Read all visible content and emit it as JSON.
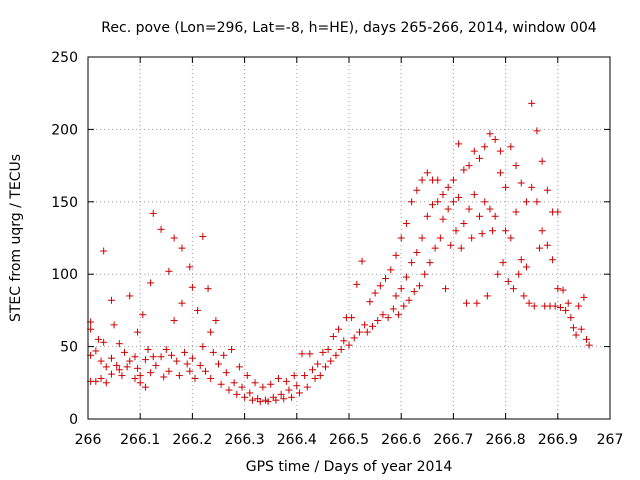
{
  "chart_data": {
    "type": "scatter",
    "title": "Rec. pove (Lon=296, Lat=-8, h=HE), days 265-266, 2014, window 004",
    "xlabel": "GPS time / Days of year 2014",
    "ylabel": "STEC from uqrg / TECUs",
    "xlim": [
      266,
      267
    ],
    "ylim": [
      0,
      250
    ],
    "xticks": [
      "266",
      "266.1",
      "266.2",
      "266.3",
      "266.4",
      "266.5",
      "266.6",
      "266.7",
      "266.8",
      "266.9",
      "267"
    ],
    "yticks": [
      "0",
      "50",
      "100",
      "150",
      "200",
      "250"
    ],
    "grid": true,
    "marker": "+",
    "marker_color": "#cc0000",
    "series": [
      {
        "values": [
          [
            266.005,
            67
          ],
          [
            266.005,
            62
          ],
          [
            266.005,
            44
          ],
          [
            266.005,
            26
          ],
          [
            266.015,
            47
          ],
          [
            266.015,
            26
          ],
          [
            266.02,
            55
          ],
          [
            266.025,
            40
          ],
          [
            266.025,
            28
          ],
          [
            266.03,
            116
          ],
          [
            266.03,
            53
          ],
          [
            266.035,
            36
          ],
          [
            266.035,
            25
          ],
          [
            266.045,
            82
          ],
          [
            266.045,
            42
          ],
          [
            266.045,
            31
          ],
          [
            266.05,
            65
          ],
          [
            266.055,
            37
          ],
          [
            266.06,
            52
          ],
          [
            266.06,
            34
          ],
          [
            266.065,
            30
          ],
          [
            266.07,
            46
          ],
          [
            266.075,
            36
          ],
          [
            266.08,
            85
          ],
          [
            266.08,
            40
          ],
          [
            266.09,
            43
          ],
          [
            266.09,
            28
          ],
          [
            266.095,
            60
          ],
          [
            266.095,
            35
          ],
          [
            266.1,
            30
          ],
          [
            266.1,
            25
          ],
          [
            266.105,
            72
          ],
          [
            266.11,
            41
          ],
          [
            266.11,
            22
          ],
          [
            266.115,
            48
          ],
          [
            266.12,
            94
          ],
          [
            266.12,
            32
          ],
          [
            266.125,
            142
          ],
          [
            266.125,
            43
          ],
          [
            266.13,
            37
          ],
          [
            266.14,
            131
          ],
          [
            266.14,
            43
          ],
          [
            266.145,
            29
          ],
          [
            266.15,
            48
          ],
          [
            266.155,
            102
          ],
          [
            266.155,
            33
          ],
          [
            266.16,
            44
          ],
          [
            266.165,
            125
          ],
          [
            266.165,
            68
          ],
          [
            266.17,
            40
          ],
          [
            266.175,
            30
          ],
          [
            266.18,
            118
          ],
          [
            266.18,
            80
          ],
          [
            266.185,
            46
          ],
          [
            266.19,
            38
          ],
          [
            266.195,
            105
          ],
          [
            266.195,
            33
          ],
          [
            266.2,
            91
          ],
          [
            266.2,
            42
          ],
          [
            266.205,
            28
          ],
          [
            266.21,
            75
          ],
          [
            266.215,
            37
          ],
          [
            266.22,
            126
          ],
          [
            266.22,
            50
          ],
          [
            266.225,
            33
          ],
          [
            266.23,
            90
          ],
          [
            266.235,
            60
          ],
          [
            266.235,
            28
          ],
          [
            266.24,
            46
          ],
          [
            266.245,
            68
          ],
          [
            266.25,
            38
          ],
          [
            266.255,
            24
          ],
          [
            266.26,
            44
          ],
          [
            266.265,
            32
          ],
          [
            266.27,
            20
          ],
          [
            266.275,
            48
          ],
          [
            266.28,
            25
          ],
          [
            266.285,
            17
          ],
          [
            266.29,
            36
          ],
          [
            266.295,
            22
          ],
          [
            266.3,
            15
          ],
          [
            266.305,
            30
          ],
          [
            266.31,
            18
          ],
          [
            266.315,
            13
          ],
          [
            266.32,
            25
          ],
          [
            266.325,
            14
          ],
          [
            266.33,
            12
          ],
          [
            266.335,
            22
          ],
          [
            266.34,
            13
          ],
          [
            266.345,
            12
          ],
          [
            266.35,
            24
          ],
          [
            266.355,
            15
          ],
          [
            266.36,
            13
          ],
          [
            266.365,
            28
          ],
          [
            266.37,
            17
          ],
          [
            266.375,
            14
          ],
          [
            266.38,
            26
          ],
          [
            266.385,
            20
          ],
          [
            266.39,
            15
          ],
          [
            266.395,
            30
          ],
          [
            266.4,
            23
          ],
          [
            266.405,
            18
          ],
          [
            266.41,
            45
          ],
          [
            266.415,
            30
          ],
          [
            266.42,
            22
          ],
          [
            266.425,
            45
          ],
          [
            266.43,
            34
          ],
          [
            266.435,
            28
          ],
          [
            266.44,
            38
          ],
          [
            266.445,
            30
          ],
          [
            266.45,
            46
          ],
          [
            266.455,
            36
          ],
          [
            266.46,
            48
          ],
          [
            266.465,
            40
          ],
          [
            266.47,
            57
          ],
          [
            266.475,
            44
          ],
          [
            266.48,
            62
          ],
          [
            266.485,
            48
          ],
          [
            266.49,
            54
          ],
          [
            266.495,
            70
          ],
          [
            266.5,
            51
          ],
          [
            266.505,
            70
          ],
          [
            266.51,
            56
          ],
          [
            266.515,
            93
          ],
          [
            266.52,
            60
          ],
          [
            266.525,
            109
          ],
          [
            266.53,
            65
          ],
          [
            266.535,
            60
          ],
          [
            266.54,
            81
          ],
          [
            266.545,
            64
          ],
          [
            266.55,
            87
          ],
          [
            266.555,
            68
          ],
          [
            266.56,
            92
          ],
          [
            266.565,
            72
          ],
          [
            266.57,
            97
          ],
          [
            266.575,
            70
          ],
          [
            266.58,
            103
          ],
          [
            266.585,
            76
          ],
          [
            266.59,
            113
          ],
          [
            266.59,
            85
          ],
          [
            266.595,
            72
          ],
          [
            266.6,
            125
          ],
          [
            266.6,
            90
          ],
          [
            266.605,
            78
          ],
          [
            266.61,
            135
          ],
          [
            266.61,
            98
          ],
          [
            266.615,
            82
          ],
          [
            266.62,
            150
          ],
          [
            266.62,
            108
          ],
          [
            266.625,
            88
          ],
          [
            266.63,
            158
          ],
          [
            266.63,
            115
          ],
          [
            266.635,
            92
          ],
          [
            266.64,
            165
          ],
          [
            266.64,
            125
          ],
          [
            266.645,
            100
          ],
          [
            266.65,
            170
          ],
          [
            266.65,
            140
          ],
          [
            266.655,
            108
          ],
          [
            266.66,
            165
          ],
          [
            266.66,
            148
          ],
          [
            266.665,
            118
          ],
          [
            266.67,
            165
          ],
          [
            266.67,
            150
          ],
          [
            266.675,
            125
          ],
          [
            266.68,
            155
          ],
          [
            266.68,
            138
          ],
          [
            266.685,
            90
          ],
          [
            266.69,
            160
          ],
          [
            266.69,
            145
          ],
          [
            266.695,
            120
          ],
          [
            266.7,
            165
          ],
          [
            266.7,
            150
          ],
          [
            266.705,
            130
          ],
          [
            266.71,
            190
          ],
          [
            266.71,
            153
          ],
          [
            266.715,
            118
          ],
          [
            266.72,
            172
          ],
          [
            266.72,
            135
          ],
          [
            266.725,
            80
          ],
          [
            266.73,
            175
          ],
          [
            266.73,
            145
          ],
          [
            266.735,
            125
          ],
          [
            266.74,
            185
          ],
          [
            266.74,
            155
          ],
          [
            266.745,
            80
          ],
          [
            266.75,
            180
          ],
          [
            266.75,
            140
          ],
          [
            266.755,
            128
          ],
          [
            266.76,
            188
          ],
          [
            266.76,
            150
          ],
          [
            266.765,
            85
          ],
          [
            266.77,
            197
          ],
          [
            266.77,
            145
          ],
          [
            266.775,
            130
          ],
          [
            266.78,
            193
          ],
          [
            266.78,
            140
          ],
          [
            266.785,
            100
          ],
          [
            266.79,
            185
          ],
          [
            266.79,
            170
          ],
          [
            266.795,
            108
          ],
          [
            266.8,
            160
          ],
          [
            266.8,
            130
          ],
          [
            266.805,
            95
          ],
          [
            266.81,
            188
          ],
          [
            266.81,
            125
          ],
          [
            266.815,
            90
          ],
          [
            266.82,
            175
          ],
          [
            266.82,
            143
          ],
          [
            266.825,
            100
          ],
          [
            266.83,
            163
          ],
          [
            266.83,
            110
          ],
          [
            266.835,
            85
          ],
          [
            266.84,
            150
          ],
          [
            266.84,
            105
          ],
          [
            266.845,
            80
          ],
          [
            266.85,
            218
          ],
          [
            266.85,
            160
          ],
          [
            266.855,
            78
          ],
          [
            266.86,
            199
          ],
          [
            266.86,
            150
          ],
          [
            266.865,
            118
          ],
          [
            266.87,
            178
          ],
          [
            266.87,
            130
          ],
          [
            266.875,
            78
          ],
          [
            266.88,
            158
          ],
          [
            266.88,
            120
          ],
          [
            266.885,
            78
          ],
          [
            266.89,
            143
          ],
          [
            266.89,
            110
          ],
          [
            266.895,
            78
          ],
          [
            266.9,
            143
          ],
          [
            266.9,
            90
          ],
          [
            266.905,
            77
          ],
          [
            266.91,
            89
          ],
          [
            266.915,
            75
          ],
          [
            266.92,
            80
          ],
          [
            266.925,
            70
          ],
          [
            266.93,
            63
          ],
          [
            266.935,
            58
          ],
          [
            266.94,
            78
          ],
          [
            266.945,
            62
          ],
          [
            266.95,
            84
          ],
          [
            266.955,
            55
          ],
          [
            266.96,
            51
          ]
        ]
      }
    ]
  }
}
